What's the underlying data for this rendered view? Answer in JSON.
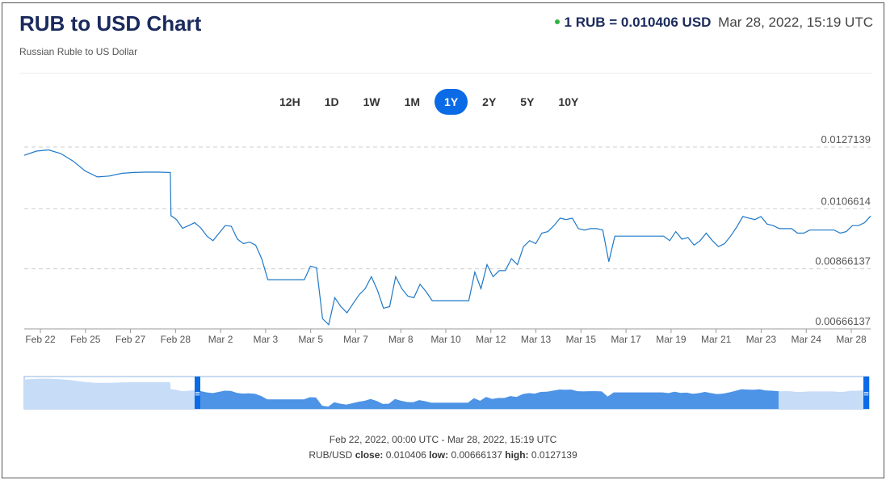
{
  "header": {
    "title": "RUB to USD Chart",
    "subtitle": "Russian Ruble to US Dollar",
    "rate_text": "1 RUB = 0.010406 USD",
    "rate_time": "Mar 28, 2022, 15:19 UTC",
    "live_color": "#2fb344"
  },
  "tabs": [
    {
      "label": "12H",
      "active": false
    },
    {
      "label": "1D",
      "active": false
    },
    {
      "label": "1W",
      "active": false
    },
    {
      "label": "1M",
      "active": false
    },
    {
      "label": "1Y",
      "active": true
    },
    {
      "label": "2Y",
      "active": false
    },
    {
      "label": "5Y",
      "active": false
    },
    {
      "label": "10Y",
      "active": false
    }
  ],
  "chart_data": {
    "type": "line",
    "title": "",
    "xlabel": "",
    "ylabel": "",
    "line_color": "#1f78c8",
    "y_ticks": [
      "0.0127139",
      "0.0106614",
      "0.00866137",
      "0.00666137"
    ],
    "ylim": [
      0.00666137,
      0.0127139
    ],
    "x_ticks": [
      "Feb 22",
      "Feb 25",
      "Feb 27",
      "Feb 28",
      "Mar 2",
      "Mar 3",
      "Mar 5",
      "Mar 7",
      "Mar 8",
      "Mar 10",
      "Mar 12",
      "Mar 13",
      "Mar 15",
      "Mar 17",
      "Mar 19",
      "Mar 21",
      "Mar 23",
      "Mar 24",
      "Mar 28"
    ],
    "grid": "horizontal dashed",
    "points": [
      [
        0,
        0.01244
      ],
      [
        2,
        0.01258
      ],
      [
        4,
        0.01262
      ],
      [
        6,
        0.0125
      ],
      [
        8,
        0.01225
      ],
      [
        10,
        0.01192
      ],
      [
        12,
        0.01172
      ],
      [
        14,
        0.01175
      ],
      [
        16,
        0.01184
      ],
      [
        18,
        0.01187
      ],
      [
        20,
        0.01188
      ],
      [
        22,
        0.01188
      ],
      [
        24,
        0.01187
      ],
      [
        24.1,
        0.01043
      ],
      [
        25,
        0.0103
      ],
      [
        26,
        0.01001
      ],
      [
        27,
        0.0101
      ],
      [
        28,
        0.0102
      ],
      [
        29,
        0.01002
      ],
      [
        30,
        0.00975
      ],
      [
        31,
        0.0096
      ],
      [
        32,
        0.00985
      ],
      [
        33,
        0.0101
      ],
      [
        34,
        0.01008
      ],
      [
        35,
        0.00965
      ],
      [
        36,
        0.0095
      ],
      [
        37,
        0.00955
      ],
      [
        38,
        0.00945
      ],
      [
        39,
        0.009
      ],
      [
        40,
        0.0083
      ],
      [
        41,
        0.0083
      ],
      [
        42,
        0.0083
      ],
      [
        43,
        0.0083
      ],
      [
        44,
        0.0083
      ],
      [
        45,
        0.0083
      ],
      [
        46,
        0.0083
      ],
      [
        47,
        0.00875
      ],
      [
        48,
        0.0087
      ],
      [
        49,
        0.007
      ],
      [
        50,
        0.0068
      ],
      [
        51,
        0.0077
      ],
      [
        52,
        0.0074
      ],
      [
        53,
        0.0072
      ],
      [
        54,
        0.0075
      ],
      [
        55,
        0.0078
      ],
      [
        56,
        0.008
      ],
      [
        57,
        0.0084
      ],
      [
        58,
        0.00795
      ],
      [
        59,
        0.00735
      ],
      [
        60,
        0.0074
      ],
      [
        61,
        0.0084
      ],
      [
        62,
        0.008
      ],
      [
        63,
        0.00775
      ],
      [
        64,
        0.0077
      ],
      [
        65,
        0.00815
      ],
      [
        66,
        0.0079
      ],
      [
        67,
        0.0076
      ],
      [
        68,
        0.0076
      ],
      [
        69,
        0.0076
      ],
      [
        70,
        0.0076
      ],
      [
        71,
        0.0076
      ],
      [
        72,
        0.0076
      ],
      [
        73,
        0.0076
      ],
      [
        74,
        0.00855
      ],
      [
        75,
        0.008
      ],
      [
        76,
        0.0088
      ],
      [
        77,
        0.0084
      ],
      [
        78,
        0.0086
      ],
      [
        79,
        0.0086
      ],
      [
        80,
        0.009
      ],
      [
        81,
        0.0088
      ],
      [
        82,
        0.0094
      ],
      [
        83,
        0.0096
      ],
      [
        84,
        0.0095
      ],
      [
        85,
        0.00985
      ],
      [
        86,
        0.0099
      ],
      [
        87,
        0.0101
      ],
      [
        88,
        0.01035
      ],
      [
        89,
        0.0103
      ],
      [
        90,
        0.01035
      ],
      [
        91,
        0.01
      ],
      [
        92,
        0.00995
      ],
      [
        93,
        0.01
      ],
      [
        94,
        0.01
      ],
      [
        95,
        0.00995
      ],
      [
        96,
        0.0089
      ],
      [
        97,
        0.00975
      ],
      [
        98,
        0.00975
      ],
      [
        99,
        0.00975
      ],
      [
        100,
        0.00975
      ],
      [
        101,
        0.00975
      ],
      [
        102,
        0.00975
      ],
      [
        103,
        0.00975
      ],
      [
        104,
        0.00975
      ],
      [
        105,
        0.00975
      ],
      [
        106,
        0.0096
      ],
      [
        107,
        0.0099
      ],
      [
        108,
        0.00965
      ],
      [
        109,
        0.0097
      ],
      [
        110,
        0.00945
      ],
      [
        111,
        0.0096
      ],
      [
        112,
        0.00985
      ],
      [
        113,
        0.0096
      ],
      [
        114,
        0.0094
      ],
      [
        115,
        0.0095
      ],
      [
        116,
        0.00975
      ],
      [
        117,
        0.01005
      ],
      [
        118,
        0.0104
      ],
      [
        119,
        0.01035
      ],
      [
        120,
        0.0103
      ],
      [
        121,
        0.0104
      ],
      [
        122,
        0.01015
      ],
      [
        123,
        0.0101
      ],
      [
        124,
        0.01
      ],
      [
        125,
        0.01
      ],
      [
        126,
        0.01
      ],
      [
        127,
        0.00985
      ],
      [
        128,
        0.00985
      ],
      [
        129,
        0.00995
      ],
      [
        130,
        0.00995
      ],
      [
        131,
        0.00995
      ],
      [
        132,
        0.00995
      ],
      [
        133,
        0.00995
      ],
      [
        134,
        0.00985
      ],
      [
        135,
        0.0099
      ],
      [
        136,
        0.0101
      ],
      [
        137,
        0.0101
      ],
      [
        138,
        0.0102
      ],
      [
        139,
        0.01042
      ]
    ]
  },
  "navigator": {
    "left_handle": "≡",
    "right_handle": "≡",
    "selected_color": "#4d93e6",
    "outside_color": "#c6dcf7"
  },
  "footer": {
    "range_text": "Feb 22, 2022, 00:00 UTC - Mar 28, 2022, 15:19 UTC",
    "pair": "RUB/USD",
    "close_label": "close:",
    "close_value": "0.010406",
    "low_label": "low:",
    "low_value": "0.00666137",
    "high_label": "high:",
    "high_value": "0.0127139"
  }
}
